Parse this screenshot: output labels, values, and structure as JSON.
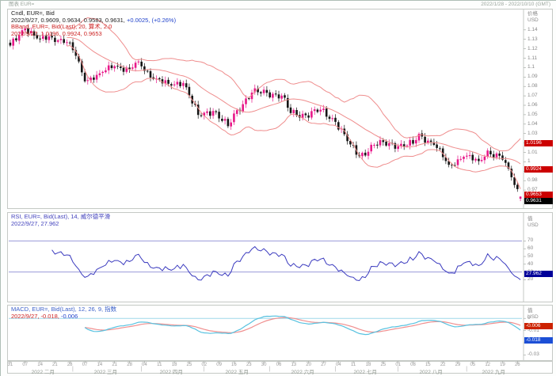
{
  "window": {
    "title_left": "图表 EUR=",
    "title_right": "2022/1/28 - 2022/10/10 (GMT)"
  },
  "price_panel": {
    "legend_line1": "Cndl, EUR=, Bid",
    "legend_line2_black": "2022/9/27, 0.9609, 0.9634, 0.9583, 0.9631,",
    "legend_line2_blue": " +0.0025, (+0.26%)",
    "legend_line3": "BBand, EUR=, Bid(Last), 20, 算术, 2.0",
    "legend_line4": "2022/9/27, 1.0196, 0.9924, 0.9653",
    "axis_title_line1": "价格",
    "axis_title_line2": "USD",
    "ticks": {
      "values": [
        1.14,
        1.13,
        1.12,
        1.11,
        1.1,
        1.09,
        1.08,
        1.07,
        1.06,
        1.05,
        1.04,
        1.03,
        1.02,
        1.01,
        1.0,
        0.99,
        0.98,
        0.97,
        0.96
      ],
      "labels": [
        "1.14",
        "1.13",
        "1.12",
        "1.11",
        "1.1",
        "1.09",
        "1.08",
        "1.07",
        "1.06",
        "1.05",
        "1.04",
        "1.03",
        "1.02",
        "1.01",
        "1",
        "0.99",
        "0.98",
        "0.97",
        "0.96"
      ]
    },
    "badges": [
      {
        "label": "1.0196",
        "value": 1.0196,
        "color": "#cc0000"
      },
      {
        "label": "0.9924",
        "value": 0.9924,
        "color": "#cc0000"
      },
      {
        "label": "0.9653",
        "value": 0.9653,
        "color": "#cc0000"
      },
      {
        "label": "0.9631",
        "value": 0.9631,
        "color": "#000000"
      }
    ]
  },
  "rsi_panel": {
    "legend_line1": "RSI, EUR=, Bid(Last), 14, 威尔德平滑",
    "legend_line2": "2022/9/27, 27.962",
    "axis_title_line1": "值",
    "axis_title_line2": "USD",
    "ticks": {
      "values": [
        70,
        60,
        50,
        40,
        30,
        20
      ],
      "labels": [
        "70",
        "60",
        "50",
        "40",
        "30",
        "20"
      ]
    },
    "badge": {
      "label": "27.962",
      "value": 27.962,
      "color": "#000099"
    },
    "guides": [
      70,
      30
    ]
  },
  "macd_panel": {
    "legend_line1": "MACD, EUR=, Bid(Last), 12, 26, 9, 指数",
    "legend_line2_red": "2022/9/27, -0.018,",
    "legend_line2_blue": " -0.006",
    "axis_title_line1": "值",
    "axis_title_line2": "USD",
    "ticks": {
      "values": [
        0,
        -0.01,
        -0.02,
        -0.03
      ],
      "labels": [
        "0",
        "-0.01",
        "-0.02",
        "-0.03"
      ]
    },
    "badges": [
      {
        "label": "-0.006",
        "value": -0.006,
        "color": "#cc2200"
      },
      {
        "label": "-0.018",
        "value": -0.018,
        "color": "#1c4fd6"
      }
    ]
  },
  "x_axis": {
    "day_labels": [
      {
        "i": 0,
        "t": "31"
      },
      {
        "i": 5,
        "t": "07"
      },
      {
        "i": 10,
        "t": "14"
      },
      {
        "i": 15,
        "t": "21"
      },
      {
        "i": 20,
        "t": "28"
      },
      {
        "i": 25,
        "t": "07"
      },
      {
        "i": 30,
        "t": "14"
      },
      {
        "i": 35,
        "t": "21"
      },
      {
        "i": 40,
        "t": "28"
      },
      {
        "i": 45,
        "t": "04"
      },
      {
        "i": 50,
        "t": "11"
      },
      {
        "i": 55,
        "t": "18"
      },
      {
        "i": 60,
        "t": "25"
      },
      {
        "i": 65,
        "t": "02"
      },
      {
        "i": 70,
        "t": "09"
      },
      {
        "i": 75,
        "t": "16"
      },
      {
        "i": 80,
        "t": "23"
      },
      {
        "i": 85,
        "t": "30"
      },
      {
        "i": 90,
        "t": "06"
      },
      {
        "i": 95,
        "t": "13"
      },
      {
        "i": 100,
        "t": "20"
      },
      {
        "i": 105,
        "t": "27"
      },
      {
        "i": 110,
        "t": "04"
      },
      {
        "i": 115,
        "t": "11"
      },
      {
        "i": 120,
        "t": "18"
      },
      {
        "i": 125,
        "t": "25"
      },
      {
        "i": 130,
        "t": "01"
      },
      {
        "i": 135,
        "t": "08"
      },
      {
        "i": 140,
        "t": "15"
      },
      {
        "i": 145,
        "t": "22"
      },
      {
        "i": 150,
        "t": "29"
      },
      {
        "i": 155,
        "t": "05"
      },
      {
        "i": 160,
        "t": "12"
      },
      {
        "i": 165,
        "t": "19"
      },
      {
        "i": 170,
        "t": "26"
      }
    ],
    "month_labels": [
      {
        "c": 11,
        "t": "2022 二月"
      },
      {
        "c": 32,
        "t": "2022 三月"
      },
      {
        "c": 54,
        "t": "2022 四月"
      },
      {
        "c": 76,
        "t": "2022 五月"
      },
      {
        "c": 98,
        "t": "2022 六月"
      },
      {
        "c": 119,
        "t": "2022 七月"
      },
      {
        "c": 141,
        "t": "2022 八月"
      },
      {
        "c": 162,
        "t": "2022 九月"
      }
    ],
    "separators": [
      21,
      44,
      65,
      87,
      109,
      130,
      153
    ]
  },
  "chart_data": {
    "type": "candlestick",
    "instrument": "EUR=",
    "interval": "daily",
    "title": "Cndl, EUR=, Bid with BBand(20,2), RSI(14), MACD(12,26,9)",
    "num_candles": 172,
    "price_ylim": [
      0.955,
      1.16
    ],
    "close_anchors": [
      [
        0,
        1.1235
      ],
      [
        5,
        1.1415
      ],
      [
        10,
        1.1305
      ],
      [
        14,
        1.132
      ],
      [
        17,
        1.1305
      ],
      [
        19,
        1.127
      ],
      [
        22,
        1.1125
      ],
      [
        25,
        1.0855
      ],
      [
        30,
        1.094
      ],
      [
        35,
        1.1015
      ],
      [
        40,
        1.0985
      ],
      [
        43,
        1.1065
      ],
      [
        48,
        1.0878
      ],
      [
        53,
        1.0828
      ],
      [
        58,
        1.0838
      ],
      [
        63,
        1.0498
      ],
      [
        68,
        1.054
      ],
      [
        73,
        1.0378
      ],
      [
        76,
        1.0548
      ],
      [
        81,
        1.0735
      ],
      [
        86,
        1.0733
      ],
      [
        91,
        1.0703
      ],
      [
        94,
        1.0518
      ],
      [
        99,
        1.0495
      ],
      [
        104,
        1.0553
      ],
      [
        109,
        1.0425
      ],
      [
        114,
        1.0185
      ],
      [
        117,
        1.006
      ],
      [
        122,
        1.018
      ],
      [
        127,
        1.0199
      ],
      [
        132,
        1.0165
      ],
      [
        135,
        1.0193
      ],
      [
        137,
        1.0298
      ],
      [
        142,
        1.018
      ],
      [
        147,
        0.9968
      ],
      [
        152,
        1.0054
      ],
      [
        157,
        1.0008
      ],
      [
        160,
        1.012
      ],
      [
        165,
        1.0023
      ],
      [
        168,
        0.9836
      ],
      [
        171,
        0.9631
      ]
    ],
    "last_candle": {
      "date": "2022/9/27",
      "open": 0.9609,
      "high": 0.9634,
      "low": 0.9583,
      "close": 0.9631,
      "change": "+0.0025",
      "change_pct": "+0.26%"
    },
    "bollinger": {
      "period": 20,
      "stdev_mult": 2.0,
      "last_upper": 1.0196,
      "last_middle": 0.9924,
      "last_lower": 0.9653
    },
    "rsi": {
      "period": 14,
      "last": 27.962,
      "overbought": 70,
      "oversold": 30,
      "ylim": [
        0,
        100
      ]
    },
    "macd": {
      "fast": 12,
      "slow": 26,
      "signal": 9,
      "last_macd": -0.018,
      "last_signal": -0.006,
      "ylim": [
        -0.033,
        0.006
      ]
    },
    "colors": {
      "candle_up": "#e81889",
      "candle_down": "#151515",
      "bollinger": "#ef8d8d",
      "rsi_line": "#3b3bbf",
      "rsi_guides": "#9a9ad8",
      "macd_line": "#58c2e0",
      "signal_line": "#f09090",
      "zero_line": "#9fd8ea"
    },
    "legend_position": "top-left",
    "grid": "off"
  }
}
